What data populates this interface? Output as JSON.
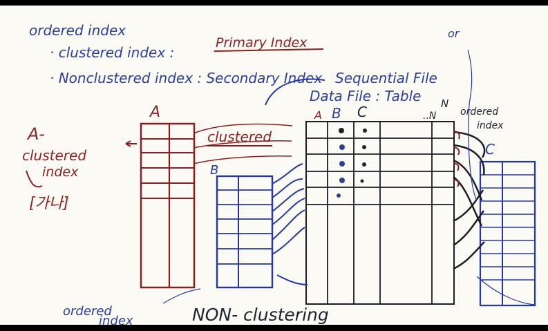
{
  "notes": {
    "ordered_index": "ordered index",
    "clustered_prefix": "· clustered index :",
    "primary_index": "Primary Index",
    "nonclustered": "· Nonclustered index : Secondary Index",
    "sequential_file": "Sequential File",
    "data_file": "Data File : Table",
    "or_mark": "or",
    "clustered_arrow_label": "clustered",
    "a_label": "A",
    "b_label": "B",
    "c_label": "C",
    "left_title_1": "A-",
    "left_title_2": "clustered",
    "left_title_3": "index",
    "left_korean": "[가나]",
    "n_label": "N",
    "right_ordered_1": "ordered",
    "right_ordered_2": "index",
    "table_header_a": "A",
    "table_header_b": "B",
    "table_header_c": "C",
    "table_header_dots": "..N",
    "bottom_ordered_1": "ordered",
    "bottom_ordered_2": "index",
    "bottom_caption": "NON- clustering"
  }
}
